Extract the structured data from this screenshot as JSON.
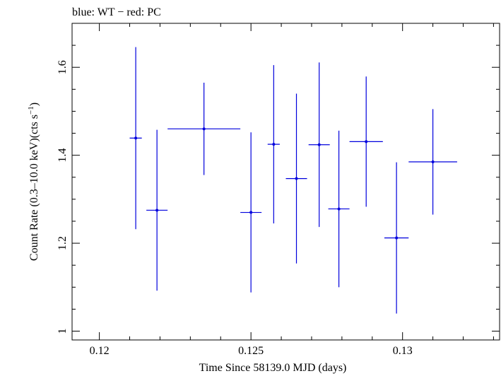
{
  "chart_data": {
    "type": "scatter",
    "title": "blue: WT − red: PC",
    "xlabel": "Time Since 58139.0 MJD (days)",
    "ylabel_main": "Count Rate (0.3–10.0 keV)(cts s",
    "ylabel_sup": "−1",
    "ylabel_close": ")",
    "xlim": [
      0.1191,
      0.1332
    ],
    "ylim": [
      0.98,
      1.7
    ],
    "xticks_major": [
      0.12,
      0.125,
      0.13
    ],
    "xtick_labels": [
      "0.12",
      "0.125",
      "0.13"
    ],
    "yticks_major": [
      1.0,
      1.2,
      1.4,
      1.6
    ],
    "ytick_labels": [
      "1",
      "1.2",
      "1.4",
      "1.6"
    ],
    "grid": false,
    "series": [
      {
        "color": "#0000dd",
        "points": [
          {
            "x": 0.1212,
            "xerr": 0.0002,
            "y": 1.439,
            "yerr_lo": 0.207,
            "yerr_hi": 0.207
          },
          {
            "x": 0.1219,
            "xerr": 0.00035,
            "y": 1.275,
            "yerr_lo": 0.183,
            "yerr_hi": 0.183
          },
          {
            "x": 0.12345,
            "xerr": 0.0012,
            "y": 1.46,
            "yerr_lo": 0.105,
            "yerr_hi": 0.105
          },
          {
            "x": 0.125,
            "xerr": 0.00035,
            "y": 1.27,
            "yerr_lo": 0.182,
            "yerr_hi": 0.182
          },
          {
            "x": 0.12575,
            "xerr": 0.0002,
            "y": 1.425,
            "yerr_lo": 0.18,
            "yerr_hi": 0.18
          },
          {
            "x": 0.1265,
            "xerr": 0.00035,
            "y": 1.347,
            "yerr_lo": 0.193,
            "yerr_hi": 0.193
          },
          {
            "x": 0.12725,
            "xerr": 0.00035,
            "y": 1.424,
            "yerr_lo": 0.187,
            "yerr_hi": 0.187
          },
          {
            "x": 0.1279,
            "xerr": 0.00035,
            "y": 1.278,
            "yerr_lo": 0.178,
            "yerr_hi": 0.178
          },
          {
            "x": 0.1288,
            "xerr": 0.00055,
            "y": 1.431,
            "yerr_lo": 0.148,
            "yerr_hi": 0.148
          },
          {
            "x": 0.1298,
            "xerr": 0.0004,
            "y": 1.212,
            "yerr_lo": 0.172,
            "yerr_hi": 0.172
          },
          {
            "x": 0.131,
            "xerr": 0.0008,
            "y": 1.385,
            "yerr_lo": 0.12,
            "yerr_hi": 0.12
          }
        ]
      }
    ]
  }
}
